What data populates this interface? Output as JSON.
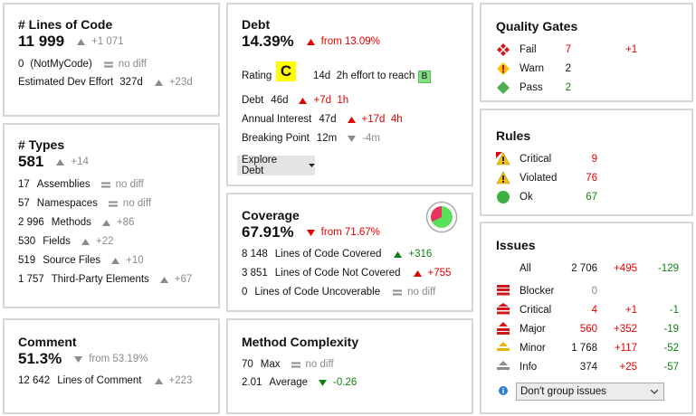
{
  "lines_of_code": {
    "title": "# Lines of Code",
    "value": "11 999",
    "delta": "+1 071",
    "rows": [
      [
        "0",
        "(NotMyCode)",
        "no diff"
      ],
      [
        "Estimated Dev Effort",
        "327d",
        "+23d"
      ]
    ]
  },
  "types": {
    "title": "# Types",
    "value": "581",
    "delta": "+14",
    "rows": [
      [
        "17",
        "Assemblies",
        "no diff"
      ],
      [
        "57",
        "Namespaces",
        "no diff"
      ],
      [
        "2 996",
        "Methods",
        "+86"
      ],
      [
        "530",
        "Fields",
        "+22"
      ],
      [
        "519",
        "Source Files",
        "+10"
      ],
      [
        "1 757",
        "Third-Party Elements",
        "+67"
      ]
    ]
  },
  "comment": {
    "title": "Comment",
    "value": "51.3%",
    "delta": "from 53.19%",
    "rows": [
      [
        "12 642",
        "Lines of Comment",
        "+223"
      ]
    ]
  },
  "debt": {
    "title": "Debt",
    "value": "14.39%",
    "delta": "from 13.09%",
    "rating_label": "Rating",
    "rating": "C",
    "effort": "14d  2h effort to reach",
    "target_rating": "B",
    "rows": [
      [
        "Debt",
        "46d",
        "+7d  1h"
      ],
      [
        "Annual Interest",
        "47d",
        "+17d  4h"
      ],
      [
        "Breaking Point",
        "12m",
        "-4m"
      ]
    ],
    "button": "Explore Debt"
  },
  "coverage": {
    "title": "Coverage",
    "value": "67.91%",
    "delta": "from 71.67%",
    "rows": [
      [
        "8 148",
        "Lines of Code Covered",
        "+316"
      ],
      [
        "3 851",
        "Lines of Code Not Covered",
        "+755"
      ],
      [
        "0",
        "Lines of Code Uncoverable",
        "no diff"
      ]
    ]
  },
  "method_complexity": {
    "title": "Method Complexity",
    "rows": [
      [
        "70",
        "Max",
        "no diff"
      ],
      [
        "2.01",
        "Average",
        "-0.26"
      ]
    ]
  },
  "quality_gates": {
    "title": "Quality Gates",
    "rows": [
      [
        "Fail",
        "7",
        "+1"
      ],
      [
        "Warn",
        "2"
      ],
      [
        "Pass",
        "2"
      ]
    ]
  },
  "rules": {
    "title": "Rules",
    "rows": [
      [
        "Critical",
        "9"
      ],
      [
        "Violated",
        "76"
      ],
      [
        "Ok",
        "67"
      ]
    ]
  },
  "issues": {
    "title": "Issues",
    "rows": [
      [
        "All",
        "2 706",
        "+495",
        "-129"
      ],
      [
        "Blocker",
        "0"
      ],
      [
        "Critical",
        "4",
        "+1",
        "-1"
      ],
      [
        "Major",
        "560",
        "+352",
        "-19"
      ],
      [
        "Minor",
        "1 768",
        "+117",
        "-52"
      ],
      [
        "Info",
        "374",
        "+25",
        "-57"
      ]
    ],
    "select": "Don't group issues"
  }
}
